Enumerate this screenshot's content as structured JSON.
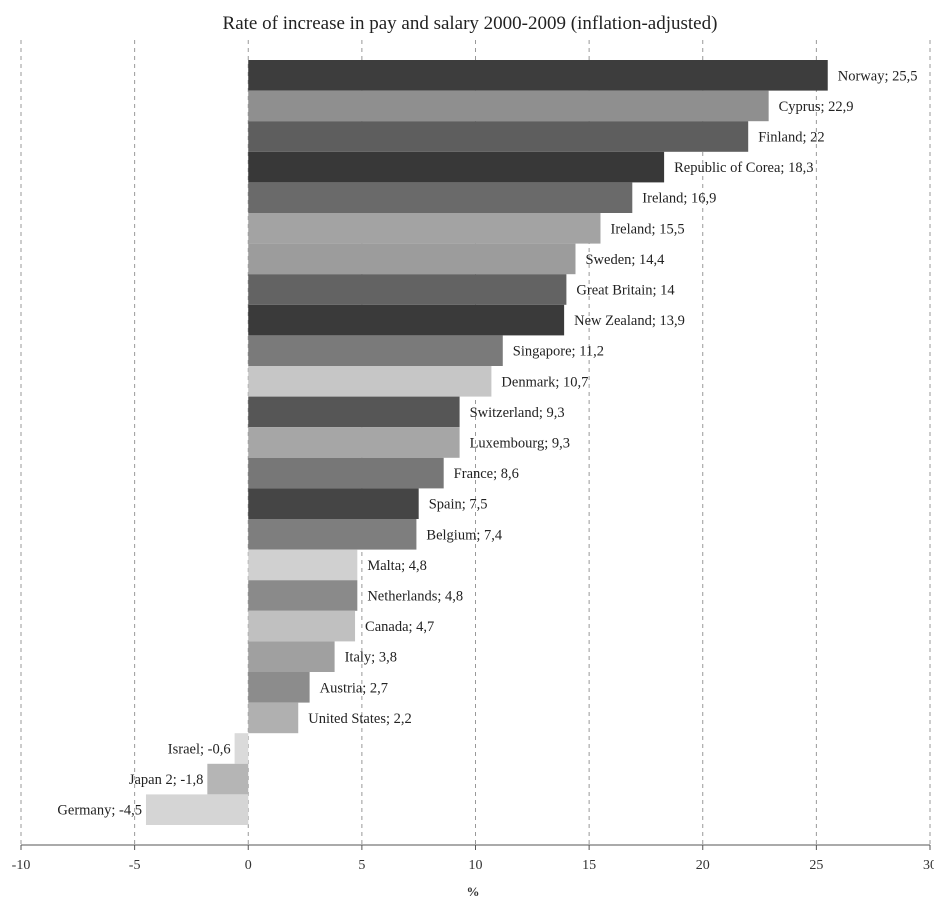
{
  "chart_data": {
    "type": "bar",
    "orientation": "horizontal",
    "title": "Rate of increase in pay and salary 2000-2009 (inflation-adjusted)",
    "xlabel": "%",
    "ylabel": "",
    "xlim": [
      -10,
      30
    ],
    "xticks": [
      -10,
      -5,
      0,
      5,
      10,
      15,
      20,
      25,
      30
    ],
    "xtick_labels": [
      "-10",
      "-5",
      "0",
      "5",
      "10",
      "15",
      "20",
      "25",
      "30"
    ],
    "grid": "vertical dashed",
    "legend": "none",
    "categories": [
      "Norway",
      "Cyprus",
      "Finland",
      "Republic of Corea",
      "Ireland",
      "Ireland",
      "Sweden",
      "Great Britain",
      "New Zealand",
      "Singapore",
      "Denmark",
      "Switzerland",
      "Luxembourg",
      "France",
      "Spain",
      "Belgium",
      "Malta",
      "Netherlands",
      "Canada",
      "Italy",
      "Austria",
      "United States",
      "Israel",
      "Japan 2",
      "Germany"
    ],
    "values": [
      25.5,
      22.9,
      22,
      18.3,
      16.9,
      15.5,
      14.4,
      14,
      13.9,
      11.2,
      10.7,
      9.3,
      9.3,
      8.6,
      7.5,
      7.4,
      4.8,
      4.8,
      4.7,
      3.8,
      2.7,
      2.2,
      -0.6,
      -1.8,
      -4.5
    ],
    "labels": [
      "Norway; 25,5",
      "Cyprus; 22,9",
      "Finland; 22",
      "Republic of Corea; 18,3",
      "Ireland; 16,9",
      "Ireland; 15,5",
      "Sweden; 14,4",
      "Great Britain; 14",
      "New Zealand; 13,9",
      "Singapore; 11,2",
      "Denmark; 10,7",
      "Switzerland; 9,3",
      "Luxembourg; 9,3",
      "France; 8,6",
      "Spain; 7,5",
      "Belgium; 7,4",
      "Malta; 4,8",
      "Netherlands; 4,8",
      "Canada; 4,7",
      "Italy; 3,8",
      "Austria; 2,7",
      "United States; 2,2",
      "Israel; -0,6",
      "Japan 2; -1,8",
      "Germany; -4,5"
    ],
    "colors": [
      "#3d3d3d",
      "#8f8f8f",
      "#5e5e5e",
      "#383838",
      "#6a6a6a",
      "#a3a3a3",
      "#9c9c9c",
      "#636363",
      "#3a3a3a",
      "#7a7a7a",
      "#c6c6c6",
      "#565656",
      "#a6a6a6",
      "#777777",
      "#454545",
      "#7e7e7e",
      "#d0d0d0",
      "#8a8a8a",
      "#c0c0c0",
      "#a0a0a0",
      "#8c8c8c",
      "#b0b0b0",
      "#dadada",
      "#b5b5b5",
      "#d5d5d5"
    ]
  }
}
